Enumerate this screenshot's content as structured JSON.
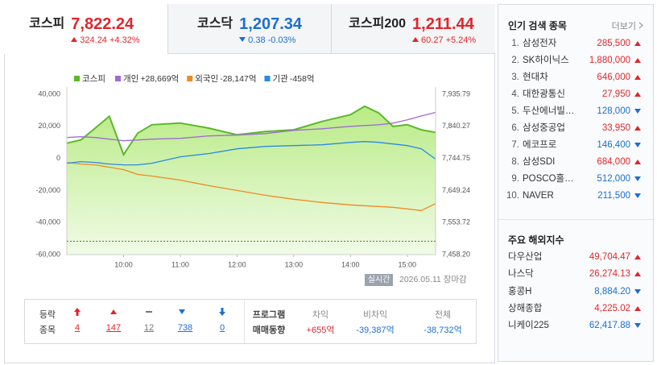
{
  "tabs": [
    {
      "name": "코스피",
      "value": "7,822.24",
      "change": "324.24",
      "rate": "+4.32%",
      "direction": "up"
    },
    {
      "name": "코스닥",
      "value": "1,207.34",
      "change": "0.38",
      "rate": "-0.03%",
      "direction": "down"
    },
    {
      "name": "코스피200",
      "value": "1,211.44",
      "change": "60.27",
      "rate": "+5.24%",
      "direction": "up"
    }
  ],
  "chart_data": {
    "type": "line",
    "x": [
      9.0,
      9.25,
      9.5,
      9.75,
      10.0,
      10.25,
      10.5,
      11.0,
      11.5,
      12.0,
      12.5,
      13.0,
      13.5,
      14.0,
      14.25,
      14.5,
      14.75,
      15.0,
      15.25,
      15.5
    ],
    "xlim": [
      9,
      15.5
    ],
    "xticks": [
      {
        "value": 10,
        "label": "10:00"
      },
      {
        "value": 11,
        "label": "11:00"
      },
      {
        "value": 12,
        "label": "12:00"
      },
      {
        "value": 13,
        "label": "13:00"
      },
      {
        "value": 14,
        "label": "14:00"
      },
      {
        "value": 15,
        "label": "15:00"
      }
    ],
    "ylim": [
      -60000,
      40000
    ],
    "yticks": [
      {
        "value": 40000,
        "label": "40,000"
      },
      {
        "value": 20000,
        "label": "20,000"
      },
      0,
      {
        "value": -20000,
        "label": "-20,000"
      },
      {
        "value": -40000,
        "label": "-40,000"
      },
      {
        "value": -60000,
        "label": "-60,000"
      }
    ],
    "y2lim": [
      7458.2,
      7935.79
    ],
    "y2ticks": [
      {
        "value": 7935.79,
        "label": "7,935.79"
      },
      {
        "value": 7840.27,
        "label": "7,840.27"
      },
      {
        "value": 7744.75,
        "label": "7,744.75"
      },
      {
        "value": 7649.24,
        "label": "7,649.24"
      },
      {
        "value": 7553.72,
        "label": "7,553.72"
      },
      {
        "value": 7458.2,
        "label": "7,458.20"
      }
    ],
    "baseline": 7498,
    "series": [
      {
        "name": "코스피",
        "color": "#5cb82a",
        "axis": "y2",
        "fill": true,
        "values": [
          7790,
          7800,
          7835,
          7870,
          7756,
          7820,
          7845,
          7850,
          7835,
          7815,
          7825,
          7830,
          7855,
          7875,
          7900,
          7880,
          7840,
          7845,
          7830,
          7822.24
        ]
      },
      {
        "name": "개인",
        "value_label": "+28,669억",
        "color": "#a06cd5",
        "values": [
          13000,
          13500,
          13000,
          12000,
          11000,
          11500,
          12000,
          12500,
          14000,
          14500,
          15500,
          17500,
          18500,
          20000,
          20500,
          21000,
          22000,
          24000,
          26500,
          28669
        ]
      },
      {
        "name": "외국인",
        "value_label": "-28,147억",
        "color": "#f08a24",
        "values": [
          -2500,
          -3500,
          -4000,
          -5500,
          -7000,
          -10000,
          -11000,
          -13500,
          -17000,
          -20000,
          -23000,
          -25500,
          -27500,
          -29000,
          -29500,
          -30000,
          -30500,
          -31500,
          -32500,
          -28147
        ]
      },
      {
        "name": "기관",
        "value_label": "-458억",
        "color": "#2a8ae0",
        "values": [
          -3000,
          -2000,
          -2500,
          -3500,
          -4000,
          -4000,
          -3000,
          1000,
          3000,
          6000,
          7500,
          8000,
          8500,
          10000,
          10500,
          10000,
          9000,
          8000,
          6000,
          -458
        ]
      }
    ]
  },
  "status": {
    "badge": "실시간",
    "date": "2026.05.11",
    "state": "장마감"
  },
  "breadth": {
    "label": [
      "등락",
      "종목"
    ],
    "counts": [
      "4",
      "147",
      "12",
      "738",
      "0"
    ]
  },
  "program": {
    "title": [
      "프로그램",
      "매매동향"
    ],
    "columns": [
      {
        "header": "차익",
        "value": "+655억",
        "direction": "up"
      },
      {
        "header": "비차익",
        "value": "-39,387억",
        "direction": "down"
      },
      {
        "header": "전체",
        "value": "-38,732억",
        "direction": "down"
      }
    ]
  },
  "popular": {
    "title": "인기 검색 종목",
    "more": "더보기",
    "items": [
      {
        "rank": "1.",
        "name": "삼성전자",
        "price": "285,500",
        "direction": "up"
      },
      {
        "rank": "2.",
        "name": "SK하이닉스",
        "price": "1,880,000",
        "direction": "up"
      },
      {
        "rank": "3.",
        "name": "현대차",
        "price": "646,000",
        "direction": "up"
      },
      {
        "rank": "4.",
        "name": "대한광통신",
        "price": "27,950",
        "direction": "up"
      },
      {
        "rank": "5.",
        "name": "두산에너빌…",
        "price": "128,000",
        "direction": "down"
      },
      {
        "rank": "6.",
        "name": "삼성중공업",
        "price": "33,950",
        "direction": "up"
      },
      {
        "rank": "7.",
        "name": "에코프로",
        "price": "146,400",
        "direction": "down"
      },
      {
        "rank": "8.",
        "name": "삼성SDI",
        "price": "684,000",
        "direction": "up"
      },
      {
        "rank": "9.",
        "name": "POSCO홀…",
        "price": "512,000",
        "direction": "down"
      },
      {
        "rank": "10.",
        "name": "NAVER",
        "price": "211,500",
        "direction": "down"
      }
    ]
  },
  "overseas": {
    "title": "주요 해외지수",
    "items": [
      {
        "name": "다우산업",
        "value": "49,704.47",
        "direction": "up"
      },
      {
        "name": "나스닥",
        "value": "26,274.13",
        "direction": "up"
      },
      {
        "name": "홍콩H",
        "value": "8,884.20",
        "direction": "down"
      },
      {
        "name": "상해종합",
        "value": "4,225.02",
        "direction": "up"
      },
      {
        "name": "니케이225",
        "value": "62,417.88",
        "direction": "down"
      }
    ]
  }
}
